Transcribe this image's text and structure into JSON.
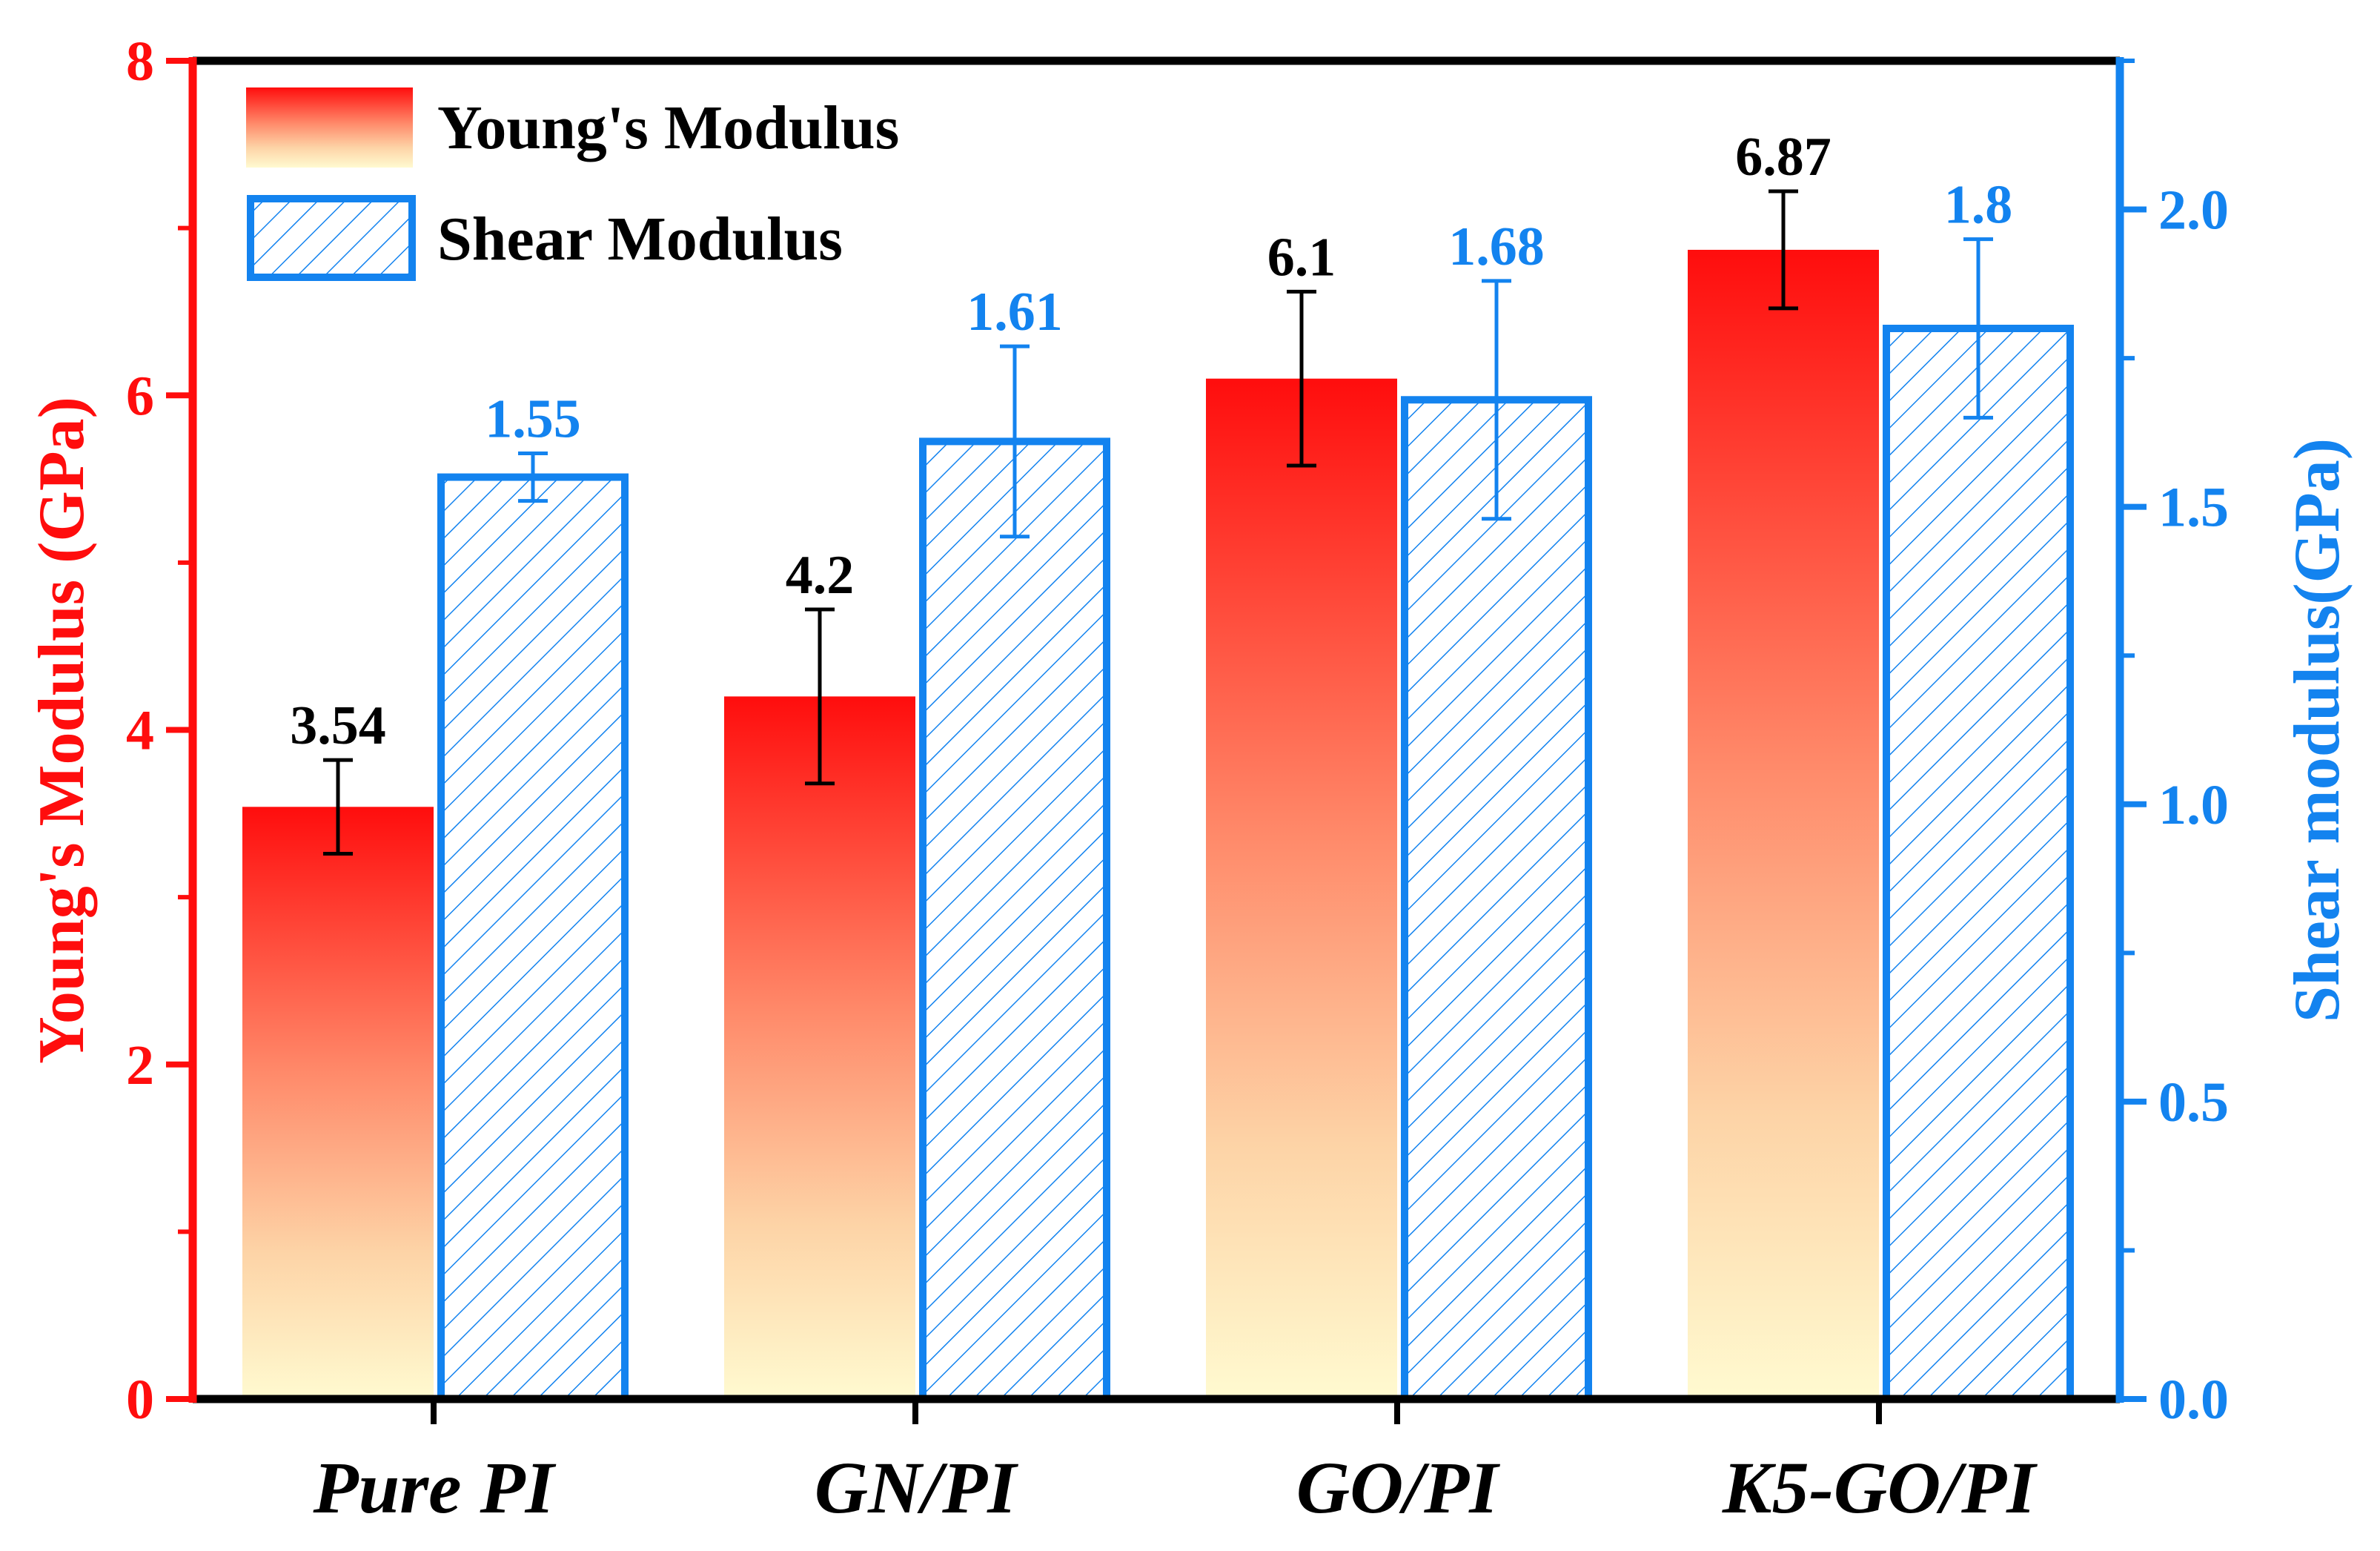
{
  "colors": {
    "young": "#ff0d0d",
    "young_light": "#fffad0",
    "shear": "#1383ef",
    "axis": "#000000"
  },
  "chart_data": {
    "type": "bar",
    "categories": [
      "Pure PI",
      "GN/PI",
      "GO/PI",
      "K5-GO/PI"
    ],
    "series": [
      {
        "name": "Young's Modulus",
        "axis": "left",
        "values": [
          3.54,
          4.2,
          6.1,
          6.87
        ],
        "errors": [
          0.28,
          0.52,
          0.52,
          0.35
        ],
        "labels": [
          "3.54",
          "4.2",
          "6.1",
          "6.87"
        ]
      },
      {
        "name": "Shear Modulus",
        "axis": "right",
        "values": [
          1.55,
          1.61,
          1.68,
          1.8
        ],
        "errors": [
          0.04,
          0.16,
          0.2,
          0.15
        ],
        "labels": [
          "1.55",
          "1.61",
          "1.68",
          "1.8"
        ]
      }
    ],
    "y_left": {
      "label": "Young's Modulus (GPa)",
      "ylim": [
        0,
        8
      ],
      "ticks": [
        0,
        2,
        4,
        6,
        8
      ],
      "tick_labels": [
        "0",
        "2",
        "4",
        "6",
        "8"
      ]
    },
    "y_right": {
      "label": "Shear modulus(GPa)",
      "ylim": [
        0,
        2.25
      ],
      "ticks": [
        0,
        0.5,
        1,
        1.5,
        2
      ],
      "tick_labels": [
        "0.0",
        "0.5",
        "1.0",
        "1.5",
        "2.0"
      ]
    },
    "legend": {
      "position": "top-left",
      "items": [
        "Young's Modulus",
        "Shear Modulus"
      ]
    },
    "grid": false
  }
}
